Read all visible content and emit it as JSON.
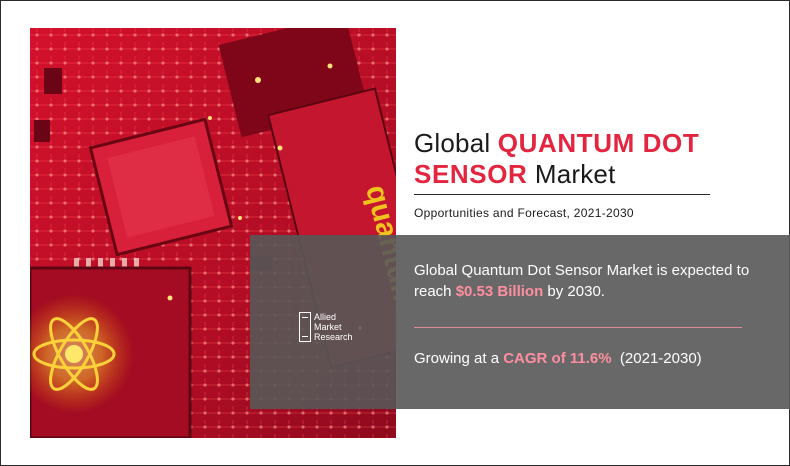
{
  "title": {
    "prefix": "Global ",
    "highlight1": "QUANTUM DOT",
    "highlight2": "SENSOR",
    "suffix": " Market"
  },
  "subtitle": "Opportunities and Forecast, 2021-2030",
  "stat_market": {
    "text_before": "Global Quantum Dot Sensor Market is expected to reach ",
    "value": "$0.53 Billion",
    "text_after": " by 2030."
  },
  "stat_growth": {
    "text_before": "Growing at a ",
    "value": "CAGR of 11.6%",
    "text_after": "  (2021-2030)"
  },
  "logo": {
    "line1": "Allied",
    "line2": "Market",
    "line3": "Research"
  },
  "image": {
    "chip_text": "quantum",
    "colors": {
      "board": "#c0102a",
      "accent": "#e3253f",
      "glow": "#ffd23a"
    }
  }
}
